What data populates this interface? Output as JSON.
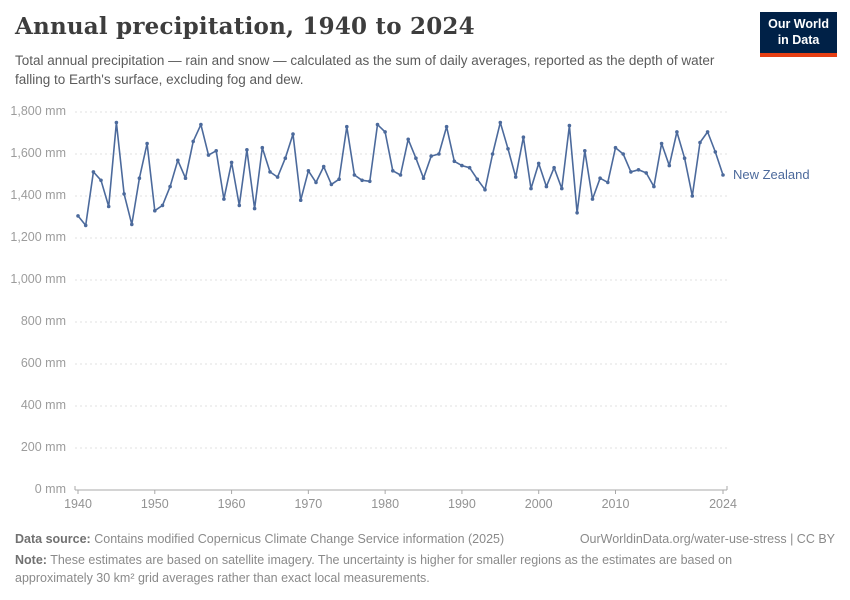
{
  "header": {
    "title": "Annual precipitation, 1940 to 2024",
    "subtitle": "Total annual precipitation — rain and snow — calculated as the sum of daily averages, reported as the depth of water falling to Earth's surface, excluding fog and dew.",
    "logo_line1": "Our World",
    "logo_line2": "in Data"
  },
  "chart_data": {
    "type": "line",
    "title": "Annual precipitation, 1940 to 2024",
    "xlabel": "",
    "ylabel": "",
    "unit": "mm",
    "xlim": [
      1940,
      2024
    ],
    "ylim": [
      0,
      1800
    ],
    "grid": true,
    "legend_position": "end-of-line",
    "x": [
      1940,
      1941,
      1942,
      1943,
      1944,
      1945,
      1946,
      1947,
      1948,
      1949,
      1950,
      1951,
      1952,
      1953,
      1954,
      1955,
      1956,
      1957,
      1958,
      1959,
      1960,
      1961,
      1962,
      1963,
      1964,
      1965,
      1966,
      1967,
      1968,
      1969,
      1970,
      1971,
      1972,
      1973,
      1974,
      1975,
      1976,
      1977,
      1978,
      1979,
      1980,
      1981,
      1982,
      1983,
      1984,
      1985,
      1986,
      1987,
      1988,
      1989,
      1990,
      1991,
      1992,
      1993,
      1994,
      1995,
      1996,
      1997,
      1998,
      1999,
      2000,
      2001,
      2002,
      2003,
      2004,
      2005,
      2006,
      2007,
      2008,
      2009,
      2010,
      2011,
      2012,
      2013,
      2014,
      2015,
      2016,
      2017,
      2018,
      2019,
      2020,
      2021,
      2022,
      2023,
      2024
    ],
    "series": [
      {
        "name": "New Zealand",
        "color": "#4C6A9C",
        "values": [
          1305,
          1260,
          1515,
          1475,
          1350,
          1750,
          1410,
          1265,
          1485,
          1650,
          1330,
          1355,
          1445,
          1570,
          1485,
          1660,
          1740,
          1595,
          1615,
          1385,
          1560,
          1355,
          1620,
          1340,
          1630,
          1515,
          1490,
          1580,
          1695,
          1380,
          1520,
          1465,
          1540,
          1455,
          1480,
          1730,
          1500,
          1475,
          1470,
          1740,
          1705,
          1520,
          1500,
          1670,
          1580,
          1485,
          1590,
          1600,
          1730,
          1565,
          1545,
          1535,
          1480,
          1430,
          1600,
          1750,
          1625,
          1490,
          1680,
          1435,
          1555,
          1445,
          1535,
          1435,
          1735,
          1320,
          1615,
          1385,
          1485,
          1465,
          1630,
          1600,
          1515,
          1525,
          1510,
          1445,
          1650,
          1545,
          1705,
          1580,
          1400,
          1655,
          1705,
          1610,
          1500
        ]
      }
    ],
    "y_ticks": [
      {
        "value": 0,
        "label": "0 mm"
      },
      {
        "value": 200,
        "label": "200 mm"
      },
      {
        "value": 400,
        "label": "400 mm"
      },
      {
        "value": 600,
        "label": "600 mm"
      },
      {
        "value": 800,
        "label": "800 mm"
      },
      {
        "value": 1000,
        "label": "1,000 mm"
      },
      {
        "value": 1200,
        "label": "1,200 mm"
      },
      {
        "value": 1400,
        "label": "1,400 mm"
      },
      {
        "value": 1600,
        "label": "1,600 mm"
      },
      {
        "value": 1800,
        "label": "1,800 mm"
      }
    ],
    "x_ticks": [
      {
        "value": 1940,
        "label": "1940"
      },
      {
        "value": 1950,
        "label": "1950"
      },
      {
        "value": 1960,
        "label": "1960"
      },
      {
        "value": 1970,
        "label": "1970"
      },
      {
        "value": 1980,
        "label": "1980"
      },
      {
        "value": 1990,
        "label": "1990"
      },
      {
        "value": 2000,
        "label": "2000"
      },
      {
        "value": 2010,
        "label": "2010"
      },
      {
        "value": 2024,
        "label": "2024"
      }
    ]
  },
  "footer": {
    "data_source_label": "Data source:",
    "data_source_text": "Contains modified Copernicus Climate Change Service information (2025)",
    "link": "OurWorldinData.org/water-use-stress | CC BY",
    "note_label": "Note:",
    "note_text": "These estimates are based on satellite imagery. The uncertainty is higher for smaller regions as the estimates are based on approximately 30 km² grid averages rather than exact local measurements."
  },
  "colors": {
    "line": "#4C6A9C",
    "grid": "#e0e0e0",
    "axis": "#a8a8a8",
    "logo_bg": "#002147",
    "logo_stripe": "#e63e13"
  }
}
